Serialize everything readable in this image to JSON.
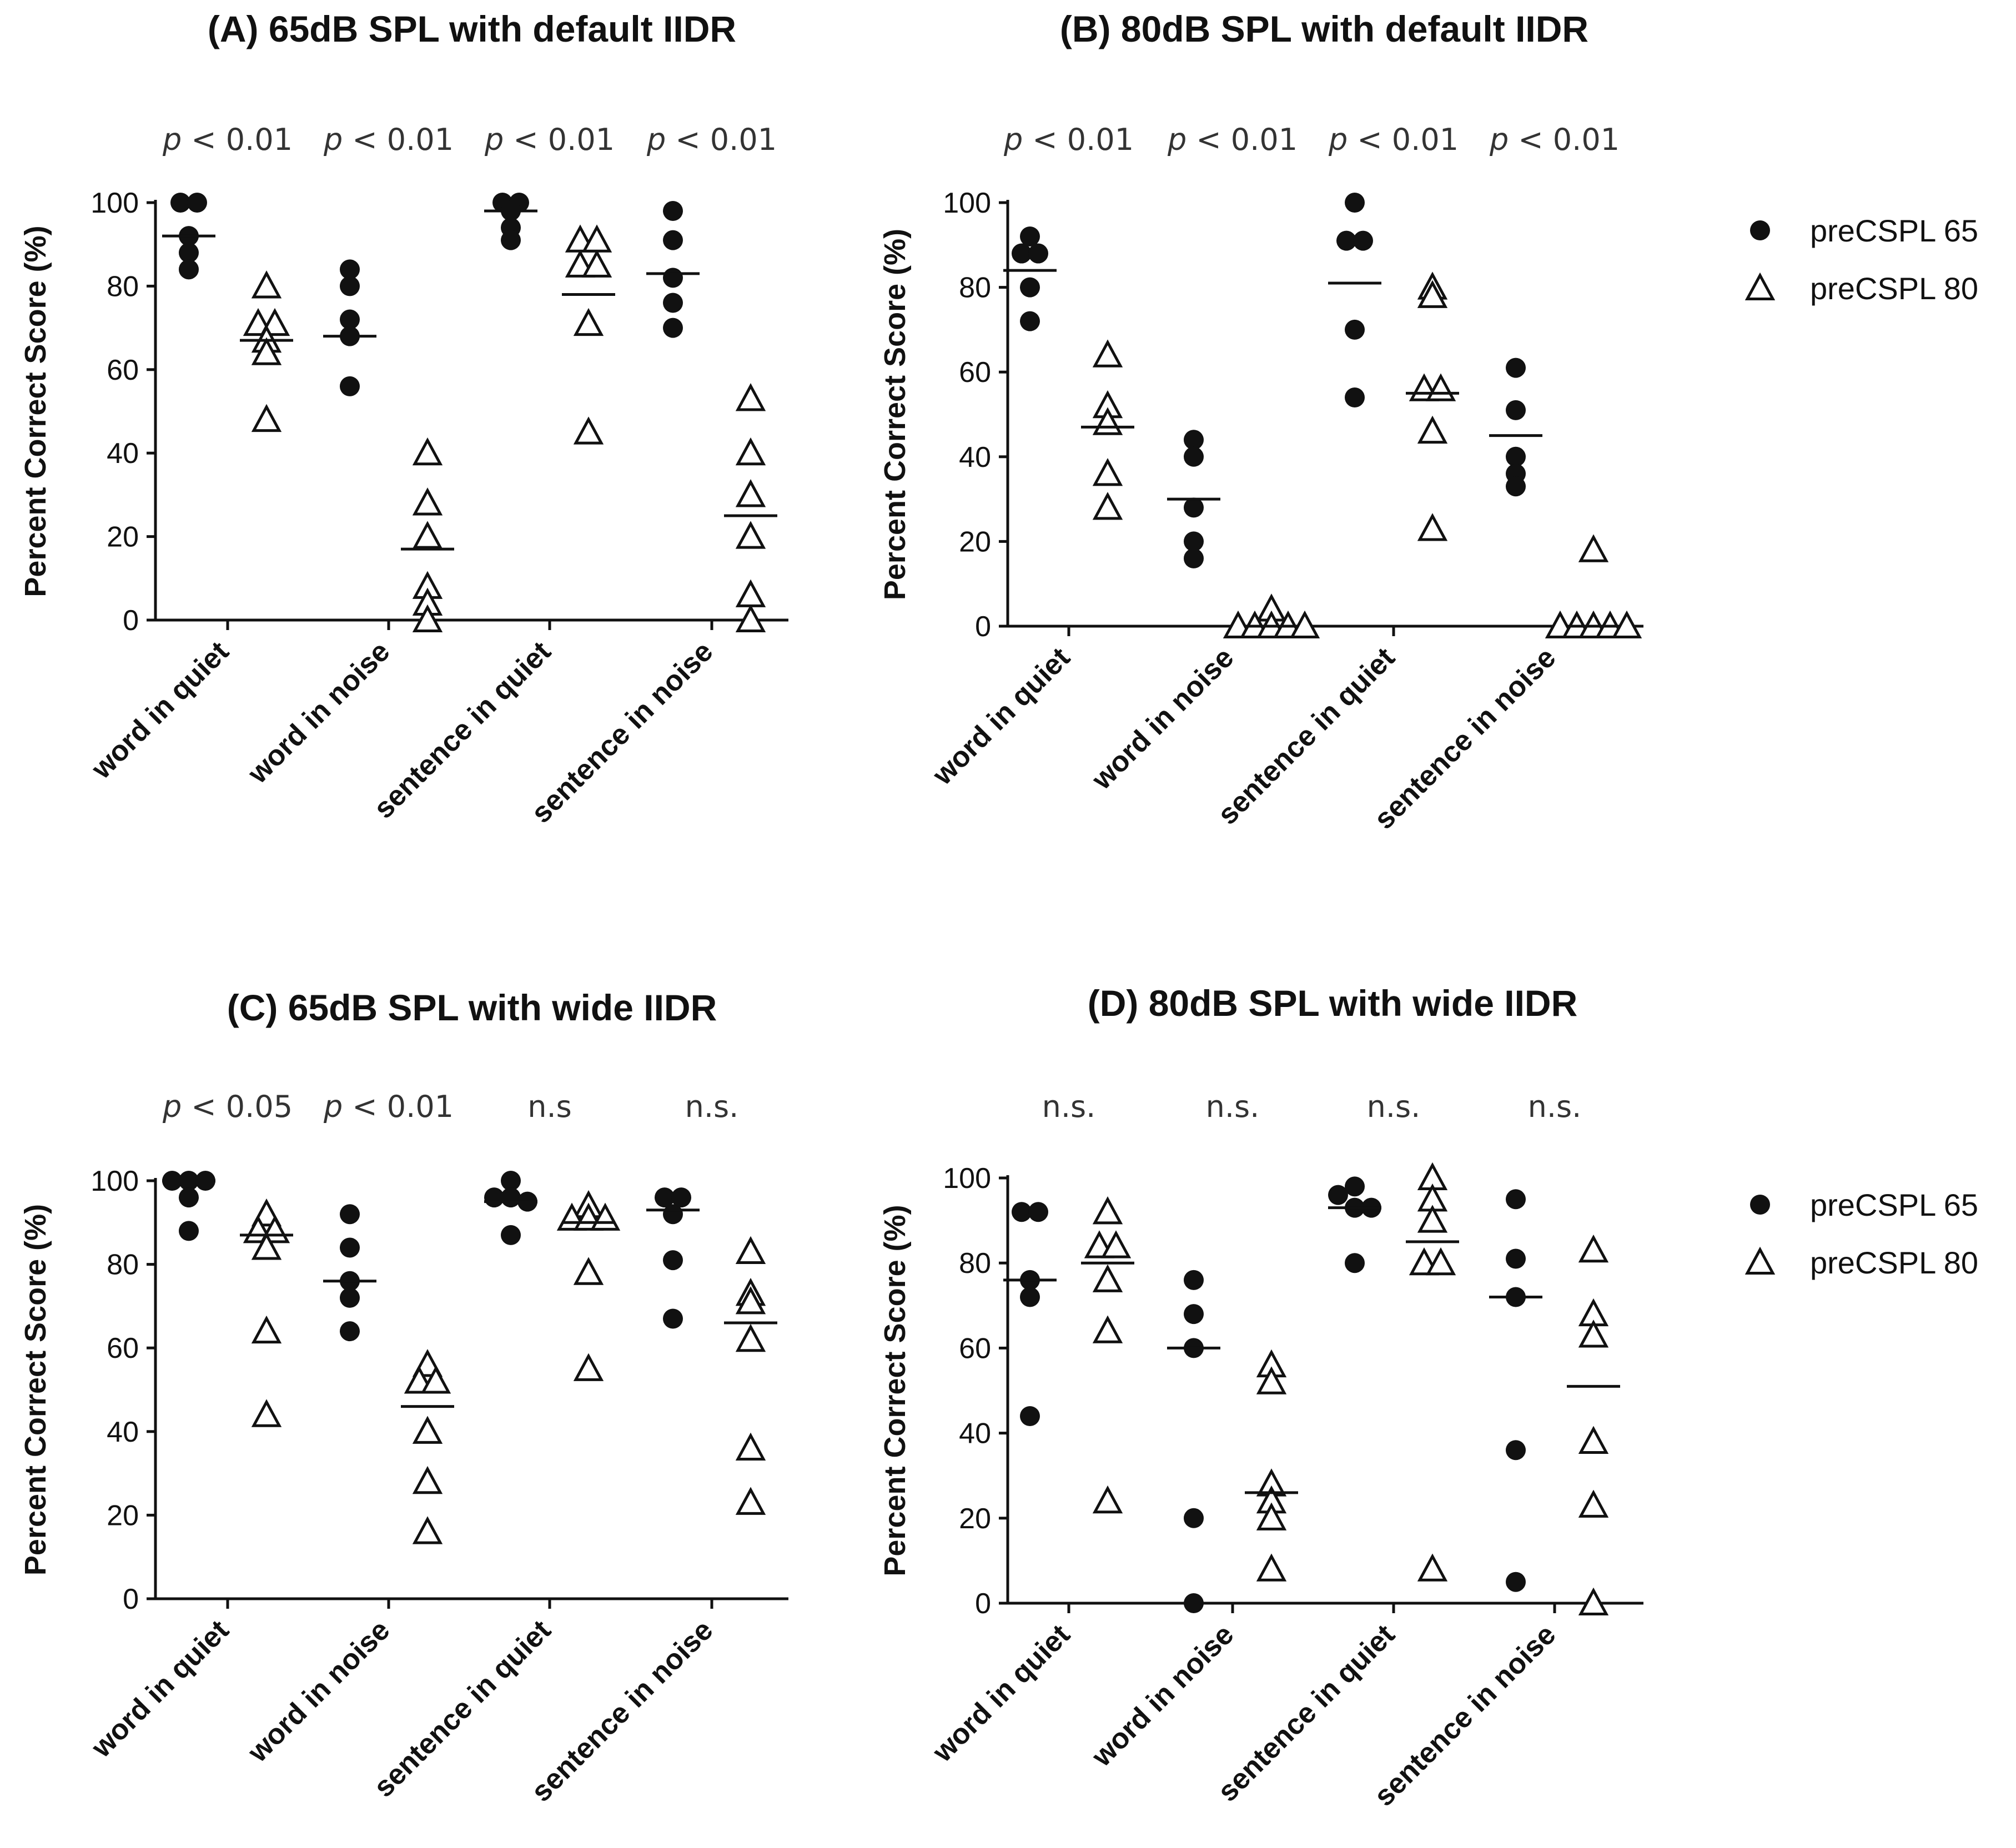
{
  "chart_data": [
    {
      "type": "scatter",
      "title": "(A)  65dB SPL with default IIDR",
      "ylabel": "Percent Correct Score (%)",
      "ylim": [
        0,
        100
      ],
      "yticks": [
        "0",
        "20",
        "40",
        "60",
        "80",
        "100"
      ],
      "categories": [
        "word in quiet",
        "word in noise",
        "sentence in quiet",
        "sentence in noise"
      ],
      "significance": [
        {
          "p": "p",
          "rest": " < 0.01"
        },
        {
          "p": "p",
          "rest": " < 0.01"
        },
        {
          "p": "p",
          "rest": " < 0.01"
        },
        {
          "p": "p",
          "rest": " < 0.01"
        }
      ],
      "series": [
        {
          "name": "preCSPL 65",
          "marker": "circle",
          "values": [
            [
              100,
              100,
              92,
              88,
              84
            ],
            [
              84,
              80,
              72,
              68,
              56
            ],
            [
              100,
              100,
              98,
              94,
              91
            ],
            [
              98,
              91,
              82,
              76,
              70
            ]
          ],
          "means": [
            92,
            68,
            98,
            83
          ]
        },
        {
          "name": "preCSPL 80",
          "marker": "triangle",
          "values": [
            [
              80,
              71,
              71,
              67,
              64,
              48
            ],
            [
              40,
              28,
              20,
              8,
              4,
              0
            ],
            [
              91,
              91,
              85,
              85,
              71,
              45
            ],
            [
              53,
              40,
              30,
              20,
              6,
              0
            ]
          ],
          "means": [
            67,
            17,
            78,
            25
          ]
        }
      ]
    },
    {
      "type": "scatter",
      "title": "(B)  80dB SPL with default IIDR",
      "ylabel": "Percent Correct Score (%)",
      "ylim": [
        0,
        100
      ],
      "yticks": [
        "0",
        "20",
        "40",
        "60",
        "80",
        "100"
      ],
      "categories": [
        "word in quiet",
        "word in noise",
        "sentence in quiet",
        "sentence in noise"
      ],
      "significance": [
        {
          "p": "p",
          "rest": " < 0.01"
        },
        {
          "p": "p",
          "rest": " < 0.01"
        },
        {
          "p": "p",
          "rest": " < 0.01"
        },
        {
          "p": "p",
          "rest": " < 0.01"
        }
      ],
      "series": [
        {
          "name": "preCSPL 65",
          "marker": "circle",
          "values": [
            [
              92,
              88,
              88,
              80,
              72
            ],
            [
              44,
              40,
              28,
              20,
              16
            ],
            [
              100,
              91,
              91,
              70,
              54
            ],
            [
              61,
              51,
              40,
              36,
              33
            ]
          ],
          "means": [
            84,
            30,
            81,
            45
          ]
        },
        {
          "name": "preCSPL 80",
          "marker": "triangle",
          "values": [
            [
              64,
              52,
              48,
              36,
              28
            ],
            [
              4,
              0,
              0,
              0,
              0,
              0
            ],
            [
              80,
              78,
              56,
              56,
              46,
              23
            ],
            [
              18,
              0,
              0,
              0,
              0,
              0
            ]
          ],
          "means": [
            47,
            0,
            55,
            0
          ]
        }
      ]
    },
    {
      "type": "scatter",
      "title": "(C)  65dB SPL with wide IIDR",
      "ylabel": "Percent Correct Score (%)",
      "ylim": [
        0,
        100
      ],
      "yticks": [
        "0",
        "20",
        "40",
        "60",
        "80",
        "100"
      ],
      "categories": [
        "word in quiet",
        "word in noise",
        "sentence in quiet",
        "sentence in noise"
      ],
      "significance": [
        {
          "p": "p",
          "rest": " < 0.05"
        },
        {
          "p": "p",
          "rest": " < 0.01"
        },
        {
          "p": "",
          "rest": "n.s"
        },
        {
          "p": "",
          "rest": "n.s."
        }
      ],
      "series": [
        {
          "name": "preCSPL 65",
          "marker": "circle",
          "values": [
            [
              100,
              100,
              100,
              96,
              88
            ],
            [
              92,
              84,
              76,
              72,
              64
            ],
            [
              100,
              96,
              96,
              95,
              87
            ],
            [
              96,
              96,
              92,
              81,
              67
            ]
          ],
          "means": [
            100,
            76,
            95,
            93
          ]
        },
        {
          "name": "preCSPL 80",
          "marker": "triangle",
          "values": [
            [
              92,
              88,
              88,
              84,
              64,
              44
            ],
            [
              56,
              52,
              52,
              40,
              28,
              16
            ],
            [
              94,
              91,
              91,
              91,
              78,
              55
            ],
            [
              83,
              73,
              71,
              62,
              36,
              23
            ]
          ],
          "means": [
            87,
            46,
            90,
            66
          ]
        }
      ]
    },
    {
      "type": "scatter",
      "title": "(D) 80dB SPL with wide IIDR",
      "ylabel": "Percent Correct Score (%)",
      "ylim": [
        0,
        100
      ],
      "yticks": [
        "0",
        "20",
        "40",
        "60",
        "80",
        "100"
      ],
      "categories": [
        "word in quiet",
        "word in noise",
        "sentence in quiet",
        "sentence in noise"
      ],
      "significance": [
        {
          "p": "",
          "rest": "n.s."
        },
        {
          "p": "",
          "rest": "n.s."
        },
        {
          "p": "",
          "rest": "n.s."
        },
        {
          "p": "",
          "rest": "n.s."
        }
      ],
      "series": [
        {
          "name": "preCSPL 65",
          "marker": "circle",
          "values": [
            [
              92,
              92,
              76,
              72,
              44
            ],
            [
              76,
              68,
              60,
              20,
              0
            ],
            [
              98,
              96,
              93,
              93,
              80
            ],
            [
              95,
              81,
              72,
              36,
              5
            ]
          ],
          "means": [
            76,
            60,
            93,
            72
          ]
        },
        {
          "name": "preCSPL 80",
          "marker": "triangle",
          "values": [
            [
              92,
              84,
              84,
              76,
              64,
              24
            ],
            [
              56,
              52,
              28,
              24,
              20,
              8
            ],
            [
              100,
              95,
              90,
              80,
              80,
              8
            ],
            [
              83,
              68,
              63,
              38,
              23,
              0
            ]
          ],
          "means": [
            80,
            26,
            85,
            51
          ]
        }
      ]
    }
  ],
  "legend": {
    "items": [
      {
        "label": "preCSPL 65",
        "marker": "circle"
      },
      {
        "label": "preCSPL 80",
        "marker": "triangle"
      }
    ]
  }
}
